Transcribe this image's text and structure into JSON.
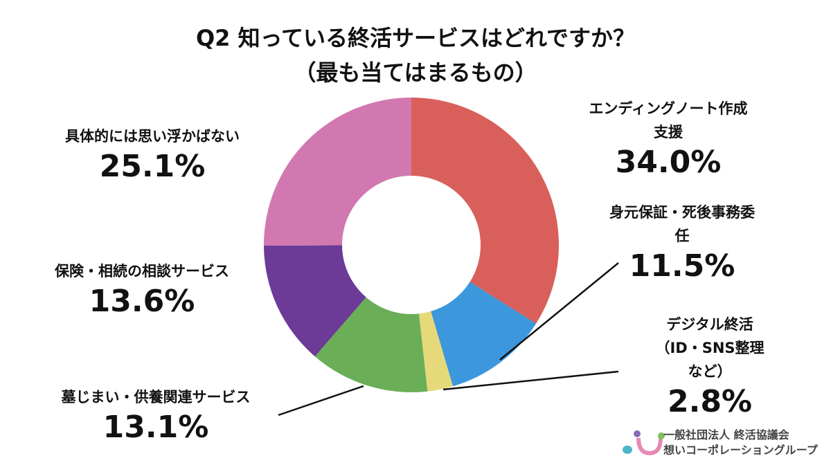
{
  "chart_data": {
    "type": "pie",
    "title": "Q2 知っている終活サービスはどれですか？\n（最も当てはまるもの）",
    "categories": [
      "エンディングノート作成支援",
      "身元保証・死後事務委任",
      "デジタル終活\n（ID・SNS整理など）",
      "墓じまい・供養関連サービス",
      "保険・相続の相談サービス",
      "具体的には思い浮かばない"
    ],
    "values": [
      34.0,
      11.5,
      2.8,
      13.1,
      13.6,
      25.1
    ],
    "value_labels": [
      "34.0%",
      "11.5%",
      "2.8%",
      "13.1%",
      "13.6%",
      "25.1%"
    ],
    "colors": [
      "#d95f5b",
      "#3d97dc",
      "#e5d97a",
      "#6aae57",
      "#6c3a97",
      "#d278b1"
    ]
  },
  "logo": {
    "line1": "一般社団法人 終活協議会",
    "line2": "想いコーポレーショングループ"
  }
}
